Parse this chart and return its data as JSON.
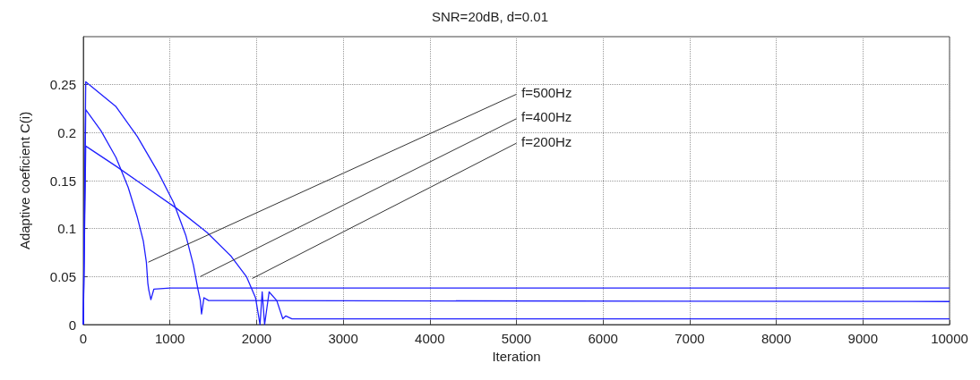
{
  "chart_data": {
    "type": "line",
    "title": "SNR=20dB, d=0.01",
    "xlabel": "Iteration",
    "ylabel": "Adaptive coeficient C(i)",
    "xlim": [
      0,
      10000
    ],
    "xticks": [
      0,
      1000,
      2000,
      3000,
      4000,
      5000,
      6000,
      7000,
      8000,
      9000,
      10000
    ],
    "ylim": [
      0,
      0.3
    ],
    "yticks": [
      0,
      0.05,
      0.1,
      0.15,
      0.2,
      0.25
    ],
    "grid": true,
    "line_style": "solid",
    "marker": "none",
    "series": [
      {
        "color": "#1f1fff",
        "x": [
          0,
          28,
          203,
          378,
          518,
          623,
          693,
          728,
          745,
          756,
          780,
          815,
          1000,
          10000
        ],
        "values": [
          0,
          0.224,
          0.202,
          0.174,
          0.143,
          0.112,
          0.087,
          0.065,
          0.043,
          0.036,
          0.026,
          0.037,
          0.038,
          0.038
        ]
      },
      {
        "color": "#1f1fff",
        "x": [
          0,
          28,
          378,
          623,
          868,
          1043,
          1183,
          1271,
          1323,
          1351,
          1365,
          1393,
          1446,
          10000
        ],
        "values": [
          0,
          0.253,
          0.227,
          0.196,
          0.158,
          0.127,
          0.093,
          0.062,
          0.037,
          0.025,
          0.011,
          0.028,
          0.025,
          0.024
        ]
      },
      {
        "color": "#1f1fff",
        "x": [
          0,
          28,
          378,
          728,
          1078,
          1428,
          1708,
          1883,
          1988,
          2040,
          2065,
          2093,
          2145,
          2233,
          2303,
          2338,
          2408,
          10000
        ],
        "values": [
          0,
          0.186,
          0.165,
          0.143,
          0.121,
          0.096,
          0.071,
          0.05,
          0.028,
          0,
          0.034,
          0,
          0.034,
          0.025,
          0.006,
          0.009,
          0.006,
          0.006
        ]
      }
    ],
    "annotations": [
      {
        "text": "f=500Hz",
        "x": 750,
        "y": 0.065
      },
      {
        "text": "f=400Hz",
        "x": 1350,
        "y": 0.05
      },
      {
        "text": "f=200Hz",
        "x": 1950,
        "y": 0.048
      }
    ]
  }
}
